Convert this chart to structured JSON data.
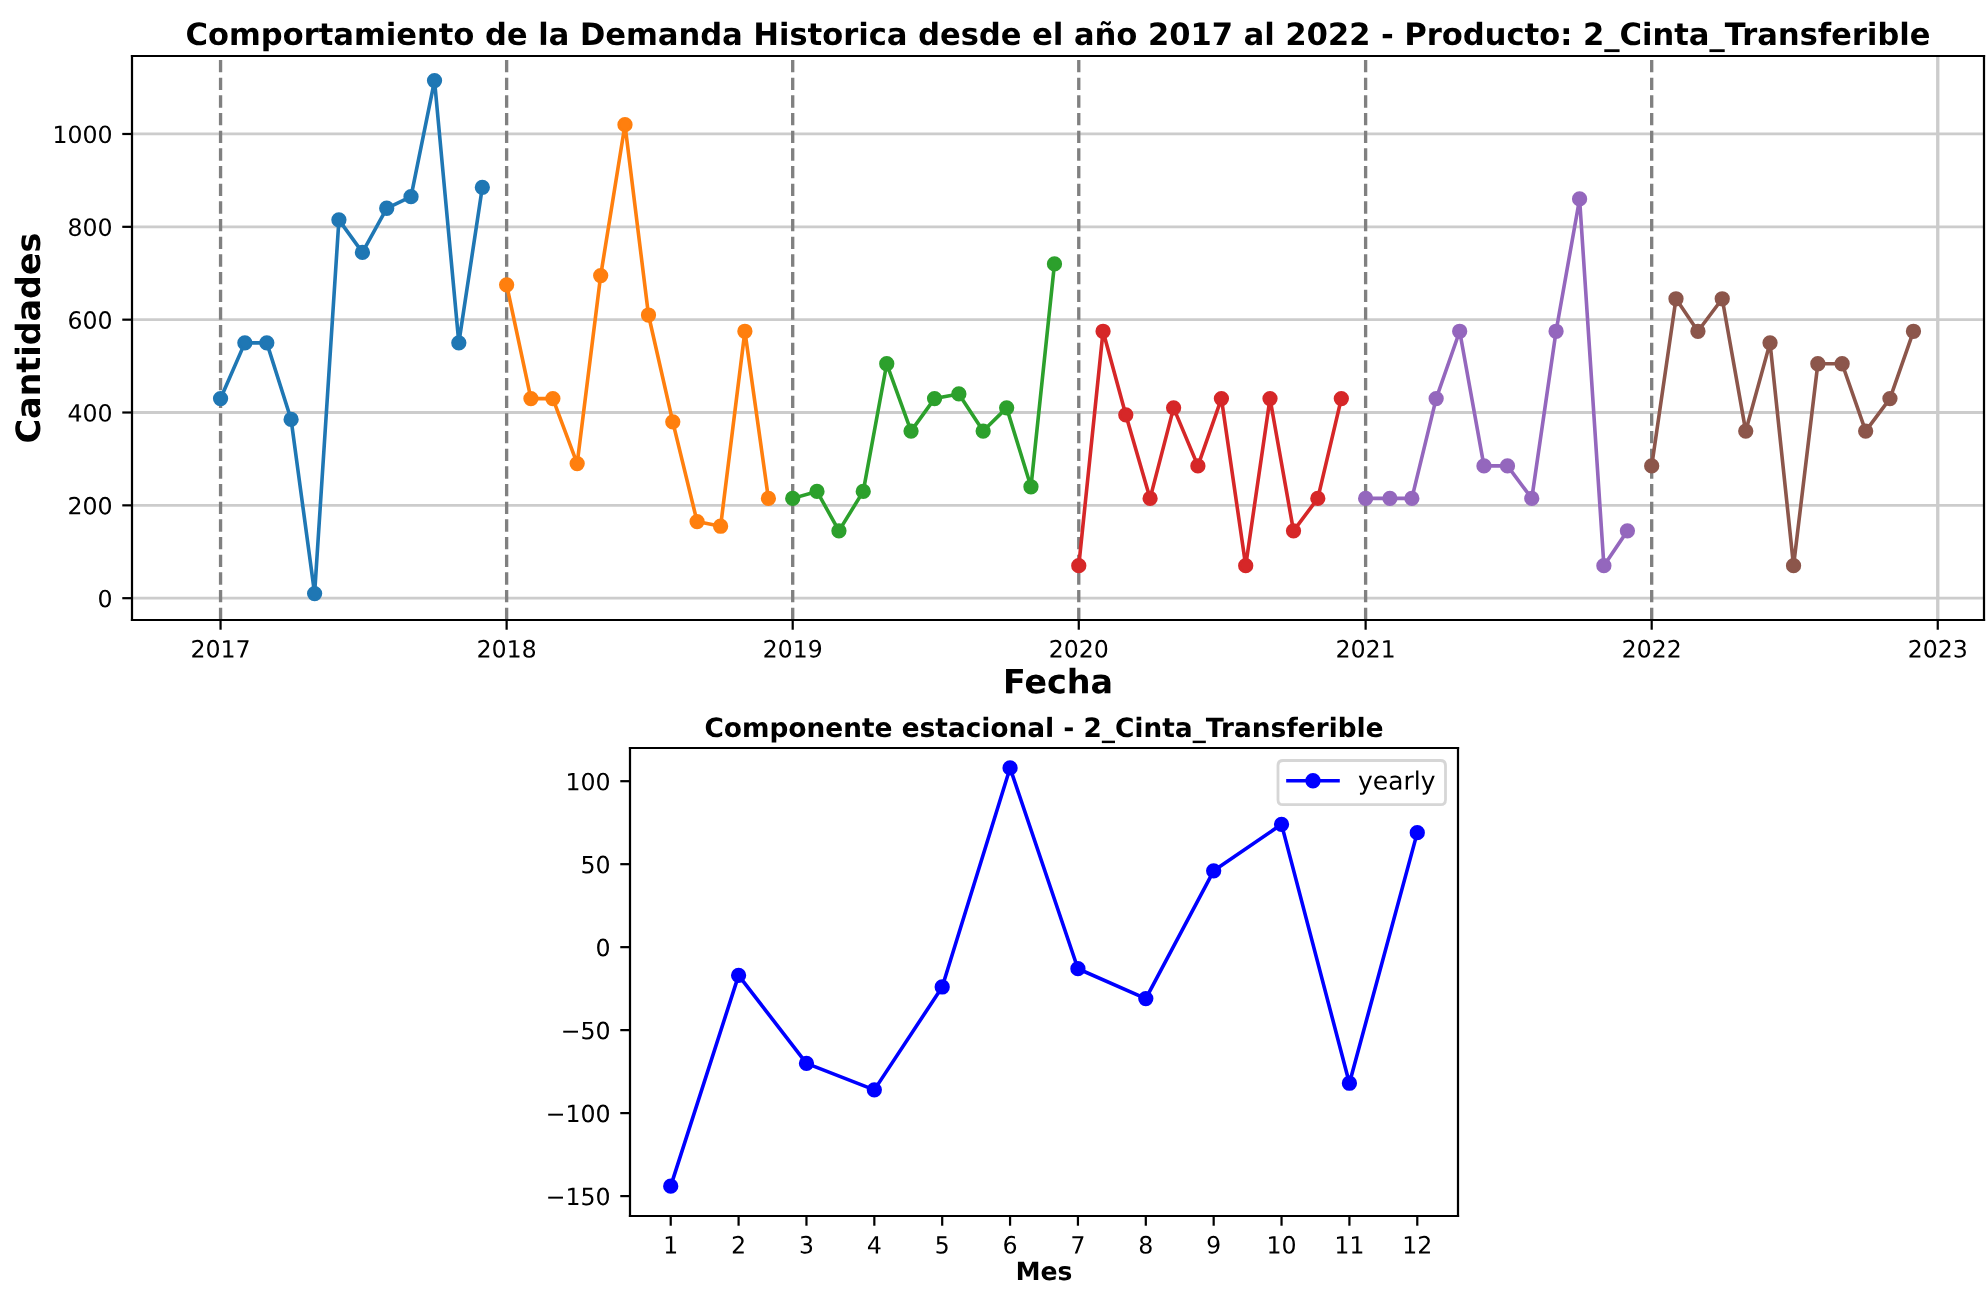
{
  "chart_data": [
    {
      "type": "line",
      "title": "Comportamiento de la Demanda Historica desde el año 2017 al 2022 - Producto: 2_Cinta_Transferible",
      "xlabel": "Fecha",
      "ylabel": "Cantidades",
      "series": [
        {
          "color": "#1f77b4",
          "x": [
            "2017-01",
            "2017-02",
            "2017-03",
            "2017-04",
            "2017-05",
            "2017-06",
            "2017-07",
            "2017-08",
            "2017-09",
            "2017-10",
            "2017-11",
            "2017-12"
          ],
          "values": [
            430,
            550,
            550,
            385,
            10,
            815,
            745,
            840,
            865,
            1115,
            550,
            885
          ]
        },
        {
          "color": "#ff7f0e",
          "x": [
            "2018-01",
            "2018-02",
            "2018-03",
            "2018-04",
            "2018-05",
            "2018-06",
            "2018-07",
            "2018-08",
            "2018-09",
            "2018-10",
            "2018-11",
            "2018-12"
          ],
          "values": [
            675,
            430,
            430,
            290,
            695,
            1020,
            610,
            380,
            165,
            155,
            575,
            215
          ]
        },
        {
          "color": "#2ca02c",
          "x": [
            "2019-01",
            "2019-02",
            "2019-03",
            "2019-04",
            "2019-05",
            "2019-06",
            "2019-07",
            "2019-08",
            "2019-09",
            "2019-10",
            "2019-11",
            "2019-12"
          ],
          "values": [
            215,
            230,
            145,
            230,
            505,
            360,
            430,
            440,
            360,
            410,
            240,
            720
          ]
        },
        {
          "color": "#d62728",
          "x": [
            "2020-01",
            "2020-02",
            "2020-03",
            "2020-04",
            "2020-05",
            "2020-06",
            "2020-07",
            "2020-08",
            "2020-09",
            "2020-10",
            "2020-11",
            "2020-12"
          ],
          "values": [
            70,
            575,
            395,
            215,
            410,
            285,
            430,
            70,
            430,
            145,
            215,
            430
          ]
        },
        {
          "color": "#9467bd",
          "x": [
            "2021-01",
            "2021-02",
            "2021-03",
            "2021-04",
            "2021-05",
            "2021-06",
            "2021-07",
            "2021-08",
            "2021-09",
            "2021-10",
            "2021-11",
            "2021-12"
          ],
          "values": [
            215,
            215,
            215,
            430,
            575,
            285,
            285,
            215,
            575,
            860,
            70,
            145
          ]
        },
        {
          "color": "#8c564b",
          "x": [
            "2022-01",
            "2022-02",
            "2022-03",
            "2022-04",
            "2022-05",
            "2022-06",
            "2022-07",
            "2022-08",
            "2022-09",
            "2022-10",
            "2022-11",
            "2022-12"
          ],
          "values": [
            285,
            645,
            575,
            645,
            360,
            550,
            70,
            505,
            505,
            360,
            430,
            575
          ]
        }
      ],
      "xlim": [
        "2016-09-10",
        "2023-03-01"
      ],
      "xticks": [
        {
          "value": "2017-01-01",
          "label": "2017"
        },
        {
          "value": "2018-01-01",
          "label": "2018"
        },
        {
          "value": "2019-01-01",
          "label": "2019"
        },
        {
          "value": "2020-01-01",
          "label": "2020"
        },
        {
          "value": "2021-01-01",
          "label": "2021"
        },
        {
          "value": "2022-01-01",
          "label": "2022"
        },
        {
          "value": "2023-01-01",
          "label": "2023"
        }
      ],
      "ylim": [
        -47,
        1168
      ],
      "yticks": [
        0,
        200,
        400,
        600,
        800,
        1000
      ],
      "grid": "y",
      "marker": "circle",
      "line_style": "solid",
      "ref_lines": [
        {
          "axis": "x",
          "value": "2017-01-01",
          "color": "#808080",
          "line_style": "dashed"
        },
        {
          "axis": "x",
          "value": "2018-01-01",
          "color": "#808080",
          "line_style": "dashed"
        },
        {
          "axis": "x",
          "value": "2019-01-01",
          "color": "#808080",
          "line_style": "dashed"
        },
        {
          "axis": "x",
          "value": "2020-01-01",
          "color": "#808080",
          "line_style": "dashed"
        },
        {
          "axis": "x",
          "value": "2021-01-01",
          "color": "#808080",
          "line_style": "dashed"
        },
        {
          "axis": "x",
          "value": "2022-01-01",
          "color": "#808080",
          "line_style": "dashed"
        },
        {
          "axis": "x",
          "value": "2023-01-01",
          "color": "#cccccc",
          "line_style": "solid"
        }
      ]
    },
    {
      "type": "line",
      "title": "Componente estacional - 2_Cinta_Transferible",
      "xlabel": "Mes",
      "x": [
        1,
        2,
        3,
        4,
        5,
        6,
        7,
        8,
        9,
        10,
        11,
        12
      ],
      "series": [
        {
          "name": "yearly",
          "color": "#0000ff",
          "values": [
            -144,
            -17,
            -70,
            -86,
            -24,
            108,
            -13,
            -31,
            46,
            74,
            -82,
            69
          ]
        }
      ],
      "xlim": [
        0.4,
        12.6
      ],
      "xticks": [
        1,
        2,
        3,
        4,
        5,
        6,
        7,
        8,
        9,
        10,
        11,
        12
      ],
      "ylim": [
        -162,
        120
      ],
      "yticks": [
        -150,
        -100,
        -50,
        0,
        50,
        100
      ],
      "grid": false,
      "legend": "top right",
      "marker": "circle",
      "line_style": "solid"
    }
  ]
}
